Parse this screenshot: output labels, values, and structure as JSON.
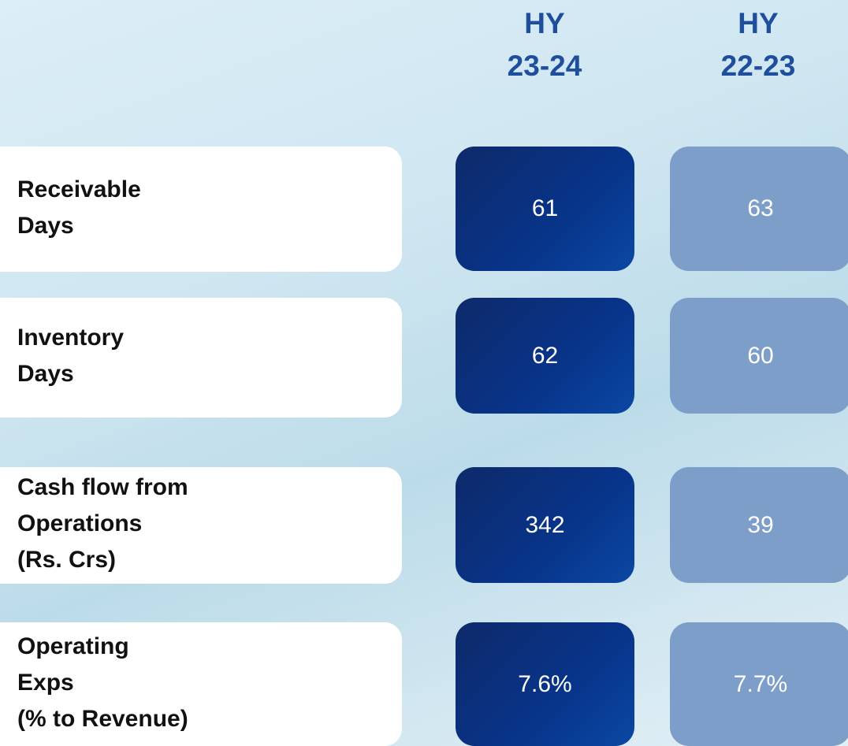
{
  "header": {
    "columns": [
      [
        "HY",
        "23-24"
      ],
      [
        "HY",
        "22-23"
      ]
    ]
  },
  "rows": [
    {
      "label": [
        "Receivable",
        "Days"
      ],
      "values": [
        "61",
        "63"
      ]
    },
    {
      "label": [
        "Inventory",
        "Days"
      ],
      "values": [
        "62",
        "60"
      ]
    },
    {
      "label": [
        "Cash flow from",
        "Operations",
        "(Rs. Crs)"
      ],
      "values": [
        "342",
        "39"
      ]
    },
    {
      "label": [
        "Operating",
        "Exps",
        "(% to Revenue)"
      ],
      "values": [
        "7.6%",
        "7.7%"
      ]
    }
  ]
}
